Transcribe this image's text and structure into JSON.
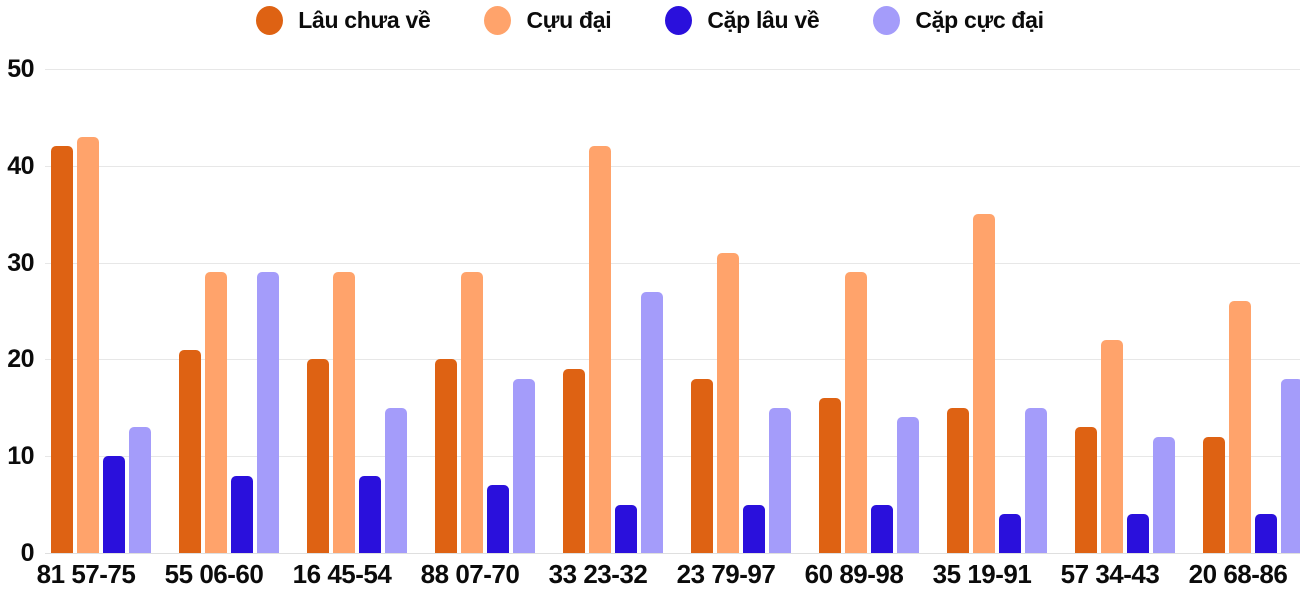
{
  "legend": {
    "items": [
      {
        "label": "Lâu chưa về",
        "color": "#DE6213"
      },
      {
        "label": "Cựu đại",
        "color": "#FFA36B"
      },
      {
        "label": "Cặp lâu về",
        "color": "#2A10DC"
      },
      {
        "label": "Cặp cực đại",
        "color": "#A49CFA"
      }
    ]
  },
  "chart_data": {
    "type": "bar",
    "title": "",
    "categories": [
      "81 57-75",
      "55 06-60",
      "16 45-54",
      "88 07-70",
      "33 23-32",
      "23 79-97",
      "60 89-98",
      "35 19-91",
      "57 34-43",
      "20 68-86"
    ],
    "series": [
      {
        "name": "Lâu chưa về",
        "color": "#DE6213",
        "values": [
          42,
          21,
          20,
          20,
          19,
          18,
          16,
          15,
          13,
          12
        ]
      },
      {
        "name": "Cựu đại",
        "color": "#FFA36B",
        "values": [
          43,
          29,
          29,
          29,
          42,
          31,
          29,
          35,
          22,
          26
        ]
      },
      {
        "name": "Cặp lâu về",
        "color": "#2A10DC",
        "values": [
          10,
          8,
          8,
          7,
          5,
          5,
          5,
          4,
          4,
          4
        ]
      },
      {
        "name": "Cặp cực đại",
        "color": "#A49CFA",
        "values": [
          13,
          29,
          15,
          18,
          27,
          15,
          14,
          15,
          12,
          18
        ]
      }
    ],
    "xlabel": "",
    "ylabel": "",
    "ylim": [
      0,
      50
    ],
    "yticks": [
      0,
      10,
      20,
      30,
      40,
      50
    ],
    "grid": true,
    "legend_position": "top"
  },
  "style": {
    "grid_color": "#E7E7E7",
    "axis_line_color": "#DFDFDF",
    "text_color": "#0b0b0b",
    "background": "#FFFFFF"
  }
}
